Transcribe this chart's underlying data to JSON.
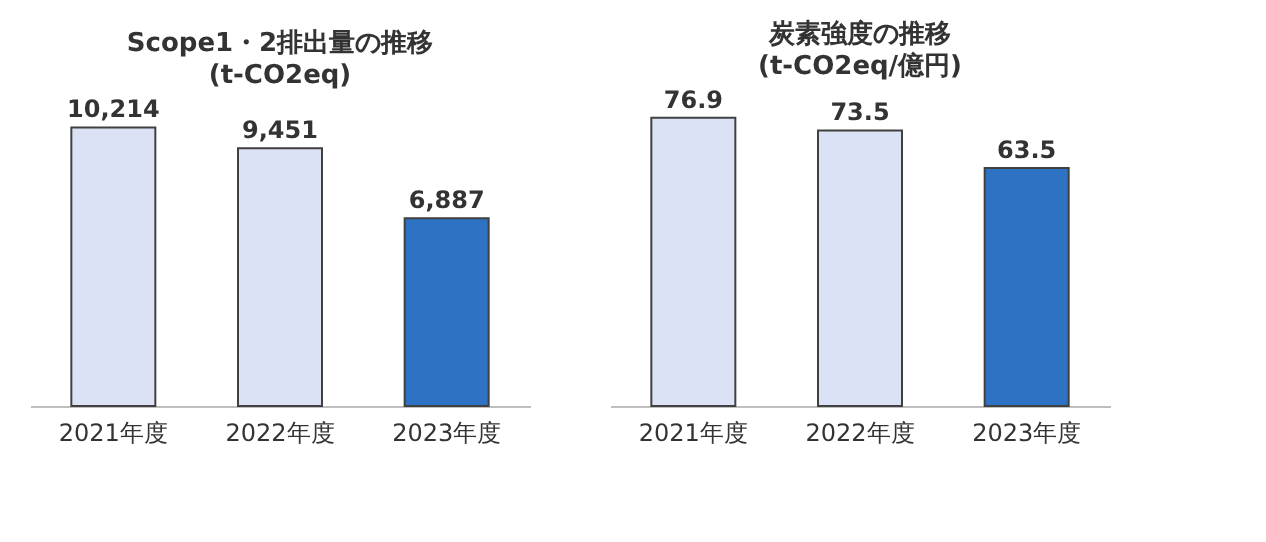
{
  "chart_data": [
    {
      "type": "bar",
      "title": "Scope1・2排出量の推移",
      "subtitle": "(t-CO2eq)",
      "categories": [
        "2021年度",
        "2022年度",
        "2023年度"
      ],
      "values": [
        10214,
        9451,
        6887
      ],
      "colors": [
        "#dce2f5",
        "#dce2f5",
        "#2e72c4"
      ],
      "value_labels": [
        "10,214",
        "9,451",
        "6,887"
      ],
      "grid": false,
      "legend": false
    },
    {
      "type": "bar",
      "title": "炭素強度の推移",
      "subtitle": "(t-CO2eq/億円)",
      "categories": [
        "2021年度",
        "2022年度",
        "2023年度"
      ],
      "values": [
        76.9,
        73.5,
        63.5
      ],
      "colors": [
        "#dce2f5",
        "#dce2f5",
        "#2e72c4"
      ],
      "data_labels": true,
      "grid": false,
      "legend": false
    }
  ]
}
